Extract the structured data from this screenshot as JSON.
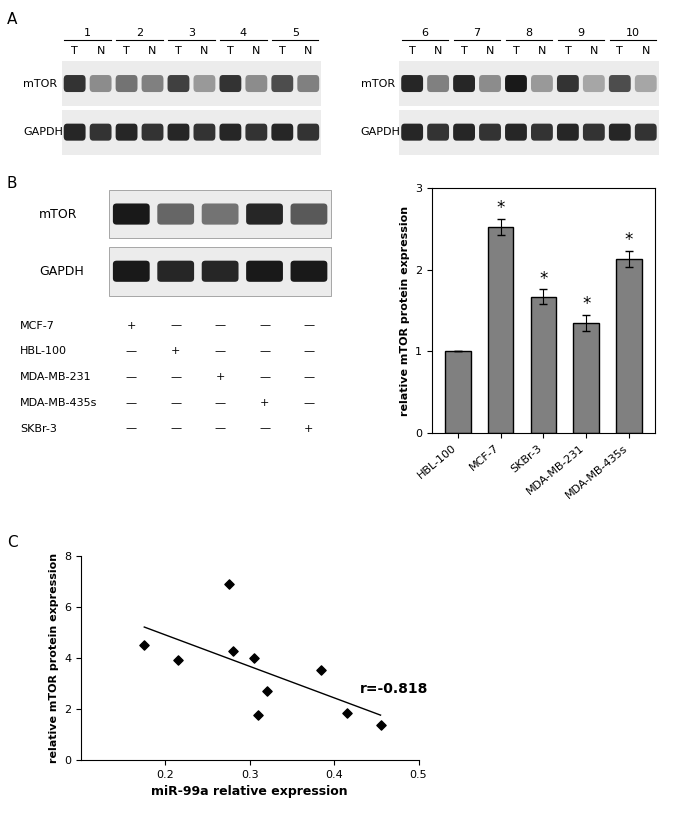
{
  "panel_labels": [
    "A",
    "B",
    "C"
  ],
  "blots_A": [
    {
      "lanes": [
        "1",
        "2",
        "3",
        "4",
        "5"
      ],
      "sublanes": [
        "T",
        "N"
      ],
      "rows": [
        {
          "name": "mTOR",
          "intensity": [
            0.8,
            0.45,
            0.55,
            0.5,
            0.75,
            0.4,
            0.8,
            0.45,
            0.7,
            0.5
          ]
        },
        {
          "name": "GAPDH",
          "intensity": [
            0.85,
            0.8,
            0.85,
            0.8,
            0.85,
            0.8,
            0.85,
            0.8,
            0.85,
            0.8
          ]
        }
      ]
    },
    {
      "lanes": [
        "6",
        "7",
        "8",
        "9",
        "10"
      ],
      "sublanes": [
        "T",
        "N"
      ],
      "rows": [
        {
          "name": "mTOR",
          "intensity": [
            0.85,
            0.5,
            0.85,
            0.45,
            0.9,
            0.4,
            0.8,
            0.35,
            0.7,
            0.35
          ]
        },
        {
          "name": "GAPDH",
          "intensity": [
            0.85,
            0.8,
            0.85,
            0.8,
            0.85,
            0.8,
            0.85,
            0.8,
            0.85,
            0.8
          ]
        }
      ]
    }
  ],
  "blot_B": {
    "rows": [
      {
        "name": "mTOR",
        "intensity": [
          0.9,
          0.6,
          0.55,
          0.85,
          0.65
        ]
      },
      {
        "name": "GAPDH",
        "intensity": [
          0.9,
          0.85,
          0.85,
          0.9,
          0.9
        ]
      }
    ],
    "cell_lines": [
      "MCF-7",
      "HBL-100",
      "MDA-MB-231",
      "MDA-MB-435s",
      "SKBr-3"
    ],
    "marks": [
      [
        "+",
        "—",
        "—",
        "—",
        "—"
      ],
      [
        "—",
        "+",
        "—",
        "—",
        "—"
      ],
      [
        "—",
        "—",
        "+",
        "—",
        "—"
      ],
      [
        "—",
        "—",
        "—",
        "+",
        "—"
      ],
      [
        "—",
        "—",
        "—",
        "—",
        "+"
      ]
    ]
  },
  "chart_data": [
    {
      "type": "bar",
      "y_label": "relative mTOR protein expression",
      "categories": [
        "HBL-100",
        "MCF-7",
        "SKBr-3",
        "MDA-MB-231",
        "MDA-MB-435s"
      ],
      "values": [
        1,
        2.52,
        1.67,
        1.35,
        2.13
      ],
      "errors": [
        0,
        0.1,
        0.09,
        0.1,
        0.1
      ],
      "significance": [
        null,
        "*",
        "*",
        "*",
        "*"
      ],
      "color": "#808080",
      "ylim": [
        0,
        3
      ],
      "yticks": [
        0,
        1,
        2,
        3
      ]
    },
    {
      "type": "scatter",
      "x_label": "miR-99a relative expression",
      "y_label": "relative mTOR protein expression",
      "x": [
        0.175,
        0.215,
        0.275,
        0.28,
        0.305,
        0.31,
        0.32,
        0.385,
        0.415,
        0.455
      ],
      "values": [
        4.5,
        3.9,
        6.9,
        4.25,
        4.0,
        1.75,
        2.7,
        3.5,
        1.85,
        1.35
      ],
      "fit_line": {
        "x": [
          0.175,
          0.455
        ],
        "y": [
          5.2,
          1.75
        ]
      },
      "annotation": "r=-0.818",
      "color": "#000000",
      "marker": "D",
      "xlim": [
        0.1,
        0.5
      ],
      "xticks": [
        0.2,
        0.3,
        0.4,
        0.5
      ],
      "ylim": [
        0,
        8
      ],
      "yticks": [
        0,
        2,
        4,
        6,
        8
      ]
    }
  ]
}
